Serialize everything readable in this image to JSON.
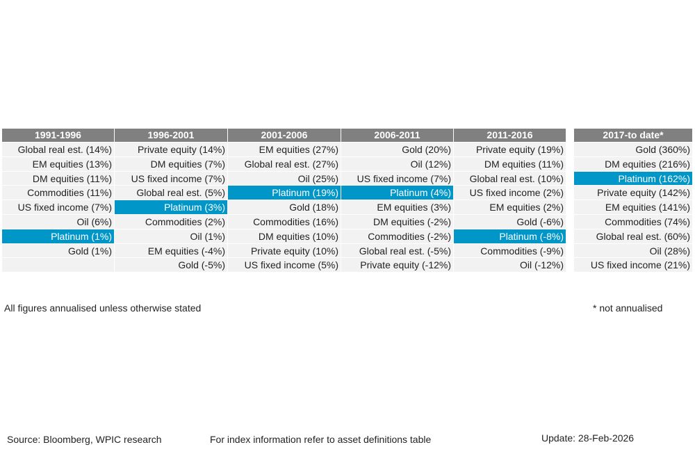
{
  "chart_data": {
    "type": "table",
    "highlight_asset": "Platinum",
    "colors": {
      "header": "#808080",
      "cell": "#f2f2f2",
      "highlight": "#0096c8"
    },
    "columns": [
      {
        "header": "1991-1996",
        "cells": [
          "Global real est. (14%)",
          "EM equities (13%)",
          "DM equities (11%)",
          "Commodities (11%)",
          "US fixed income (7%)",
          "Oil (6%)",
          "Platinum (1%)",
          "Gold (1%)",
          ""
        ]
      },
      {
        "header": "1996-2001",
        "cells": [
          "Private equity (14%)",
          "DM equities (7%)",
          "US fixed income (7%)",
          "Global real est. (5%)",
          "Platinum (3%)",
          "Commodities (2%)",
          "Oil (1%)",
          "EM equities (-4%)",
          "Gold (-5%)"
        ]
      },
      {
        "header": "2001-2006",
        "cells": [
          "EM equities (27%)",
          "Global real est. (27%)",
          "Oil (25%)",
          "Platinum (19%)",
          "Gold (18%)",
          "Commodities (16%)",
          "DM equities (10%)",
          "Private equity (10%)",
          "US fixed income (5%)"
        ]
      },
      {
        "header": "2006-2011",
        "cells": [
          "Gold (20%)",
          "Oil (12%)",
          "US fixed income (7%)",
          "Platinum (4%)",
          "EM equities (3%)",
          "DM equities (-2%)",
          "Commodities (-2%)",
          "Global real est. (-5%)",
          "Private equity (-12%)"
        ]
      },
      {
        "header": "2011-2016",
        "cells": [
          "Private equity (19%)",
          "DM equities (11%)",
          "Global real est. (10%)",
          "US fixed income (2%)",
          "EM equities (2%)",
          "Gold (-6%)",
          "Platinum (-8%)",
          "Commodities (-9%)",
          "Oil (-12%)"
        ]
      },
      {
        "header": "2017-to date*",
        "cells": [
          "Gold (360%)",
          "DM equities (216%)",
          "Platinum (162%)",
          "Private equity (142%)",
          "EM equities (141%)",
          "Commodities (74%)",
          "Global real est. (60%)",
          "Oil (28%)",
          "US fixed income (21%)"
        ]
      }
    ]
  },
  "notes": {
    "annualised": "All figures annualised unless otherwise stated",
    "not_annualised": "* not annualised",
    "source": "Source: Bloomberg, WPIC research",
    "index_info": "For index information refer to asset definitions table",
    "update": "Update: 28-Feb-2026"
  }
}
